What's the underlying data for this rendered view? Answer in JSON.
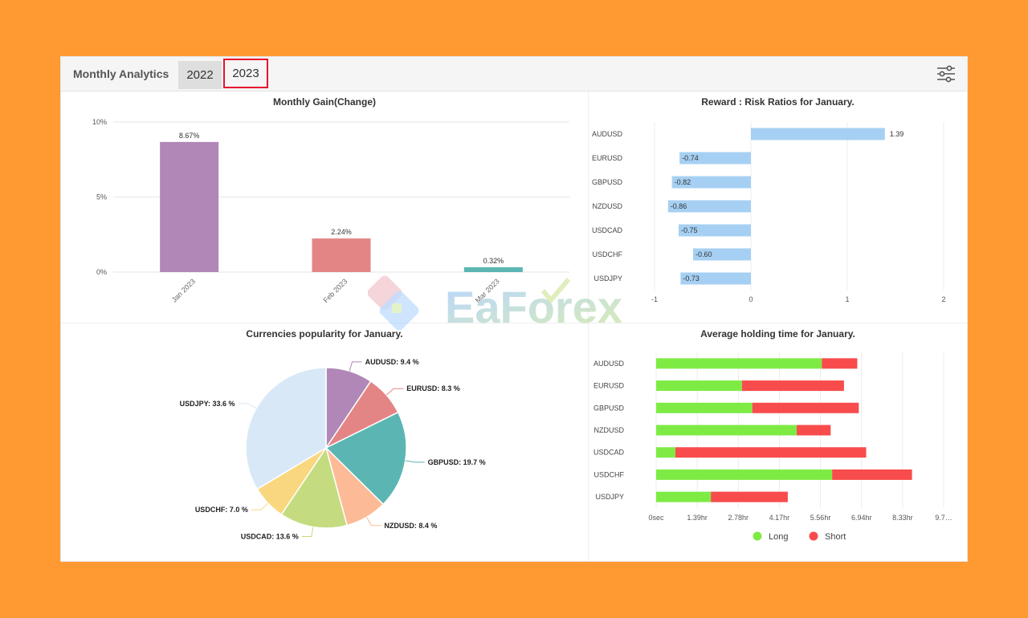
{
  "header": {
    "title": "Monthly Analytics",
    "tabs": [
      {
        "label": "2022"
      },
      {
        "label": "2023"
      }
    ],
    "selected_tab": "2023"
  },
  "gain_chart": {
    "title": "Monthly Gain(Change)",
    "yticks": [
      "10%",
      "5%",
      "0%"
    ],
    "chart_data": {
      "type": "bar",
      "categories": [
        "Jan 2023",
        "Feb 2023",
        "Mar 2023"
      ],
      "values": [
        8.67,
        2.24,
        0.32
      ],
      "labels": [
        "8.67%",
        "2.24%",
        "0.32%"
      ],
      "colors": [
        "#B087B7",
        "#E48585",
        "#5BB6B3"
      ],
      "ylim": [
        0,
        10
      ]
    }
  },
  "rr_chart": {
    "title": "Reward : Risk Ratios for January.",
    "xticks": [
      "-1",
      "0",
      "1",
      "2"
    ],
    "chart_data": {
      "type": "bar",
      "orientation": "horizontal",
      "categories": [
        "AUDUSD",
        "EURUSD",
        "GBPUSD",
        "NZDUSD",
        "USDCAD",
        "USDCHF",
        "USDJPY"
      ],
      "values": [
        1.39,
        -0.74,
        -0.82,
        -0.86,
        -0.75,
        -0.6,
        -0.73
      ],
      "labels": [
        "1.39",
        "-0.74",
        "-0.82",
        "-0.86",
        "-0.75",
        "-0.60",
        "-0.73"
      ],
      "color": "#A6D0F3",
      "xlim": [
        -1,
        2
      ]
    }
  },
  "pie_chart": {
    "title": "Currencies popularity for January.",
    "chart_data": {
      "type": "pie",
      "slices": [
        {
          "name": "AUDUSD",
          "value": 9.4,
          "label": "AUDUSD: 9.4 %",
          "color": "#B087B7"
        },
        {
          "name": "EURUSD",
          "value": 8.3,
          "label": "EURUSD: 8.3 %",
          "color": "#E48585"
        },
        {
          "name": "GBPUSD",
          "value": 19.7,
          "label": "GBPUSD: 19.7 %",
          "color": "#5BB6B3"
        },
        {
          "name": "NZDUSD",
          "value": 8.4,
          "label": "NZDUSD: 8.4 %",
          "color": "#FDBA96"
        },
        {
          "name": "USDCAD",
          "value": 13.6,
          "label": "USDCAD: 13.6 %",
          "color": "#C4DC7F"
        },
        {
          "name": "USDCHF",
          "value": 7.0,
          "label": "USDCHF: 7.0 %",
          "color": "#F9D77E"
        },
        {
          "name": "USDJPY",
          "value": 33.6,
          "label": "USDJPY: 33.6 %",
          "color": "#D8E8F7"
        }
      ]
    }
  },
  "hold_chart": {
    "title": "Average holding time for January.",
    "xticks": [
      "0sec",
      "1.39hr",
      "2.78hr",
      "4.17hr",
      "5.56hr",
      "6.94hr",
      "8.33hr",
      "9.7…"
    ],
    "legend": [
      {
        "name": "Long",
        "color": "#7EEB45"
      },
      {
        "name": "Short",
        "color": "#F84C4C"
      }
    ],
    "chart_data": {
      "type": "bar",
      "orientation": "horizontal",
      "stacked": true,
      "categories": [
        "AUDUSD",
        "EURUSD",
        "GBPUSD",
        "NZDUSD",
        "USDCAD",
        "USDCHF",
        "USDJPY"
      ],
      "units": "hr",
      "xlim": [
        0,
        9.72
      ],
      "series": [
        {
          "name": "Long",
          "values": [
            5.6,
            2.9,
            3.25,
            4.75,
            0.65,
            5.95,
            1.85
          ]
        },
        {
          "name": "Short",
          "values": [
            1.2,
            3.45,
            3.6,
            1.15,
            6.45,
            2.7,
            2.6
          ]
        }
      ]
    }
  },
  "watermark": {
    "text": "EaForex"
  }
}
